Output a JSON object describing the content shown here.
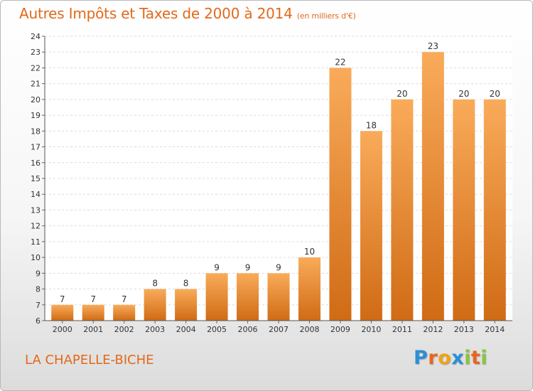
{
  "title": "Autres Impôts et Taxes de 2000 à 2014",
  "unit": "(en milliers d'€)",
  "commune": "LA CHAPELLE-BICHE",
  "logo": {
    "letters": [
      "P",
      "r",
      "o",
      "x",
      "i",
      "t",
      "i"
    ],
    "colors": [
      "#2a8fd6",
      "#e8661d",
      "#f0a21a",
      "#2a8fd6",
      "#8ac43f",
      "#e8661d",
      "#8ac43f"
    ]
  },
  "colors": {
    "accent": "#e2691a",
    "bar_light": "#f9ab5a",
    "bar_dark": "#d06b15"
  },
  "chart_data": {
    "type": "bar",
    "categories": [
      "2000",
      "2001",
      "2002",
      "2003",
      "2004",
      "2005",
      "2006",
      "2007",
      "2008",
      "2009",
      "2010",
      "2011",
      "2012",
      "2013",
      "2014"
    ],
    "values": [
      7,
      7,
      7,
      8,
      8,
      9,
      9,
      9,
      10,
      22,
      18,
      20,
      23,
      20,
      20
    ],
    "ylim": [
      6,
      24
    ],
    "yticks": [
      6,
      7,
      8,
      9,
      10,
      11,
      12,
      13,
      14,
      15,
      16,
      17,
      18,
      19,
      20,
      21,
      22,
      23,
      24
    ],
    "grid": true
  }
}
